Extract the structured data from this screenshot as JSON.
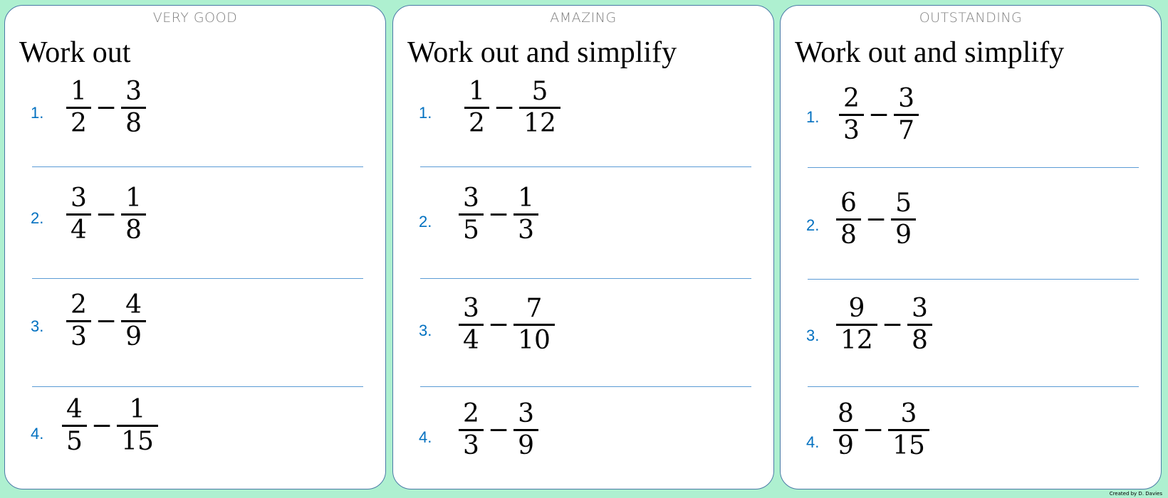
{
  "panels": [
    {
      "grade": "VERY GOOD",
      "instruction": "Work out",
      "questions": [
        {
          "n": "1.",
          "a": [
            "1",
            "2"
          ],
          "b": [
            "3",
            "8"
          ]
        },
        {
          "n": "2.",
          "a": [
            "3",
            "4"
          ],
          "b": [
            "1",
            "8"
          ]
        },
        {
          "n": "3.",
          "a": [
            "2",
            "3"
          ],
          "b": [
            "4",
            "9"
          ]
        },
        {
          "n": "4.",
          "a": [
            "4",
            "5"
          ],
          "b": [
            "1",
            "15"
          ]
        }
      ]
    },
    {
      "grade": "AMAZING",
      "instruction": "Work out and simplify",
      "questions": [
        {
          "n": "1.",
          "a": [
            "1",
            "2"
          ],
          "b": [
            "5",
            "12"
          ]
        },
        {
          "n": "2.",
          "a": [
            "3",
            "5"
          ],
          "b": [
            "1",
            "3"
          ]
        },
        {
          "n": "3.",
          "a": [
            "3",
            "4"
          ],
          "b": [
            "7",
            "10"
          ]
        },
        {
          "n": "4.",
          "a": [
            "2",
            "3"
          ],
          "b": [
            "3",
            "9"
          ]
        }
      ]
    },
    {
      "grade": "OUTSTANDING",
      "instruction": "Work out and simplify",
      "questions": [
        {
          "n": "1.",
          "a": [
            "2",
            "3"
          ],
          "b": [
            "3",
            "7"
          ]
        },
        {
          "n": "2.",
          "a": [
            "6",
            "8"
          ],
          "b": [
            "5",
            "9"
          ]
        },
        {
          "n": "3.",
          "a": [
            "9",
            "12"
          ],
          "b": [
            "3",
            "8"
          ]
        },
        {
          "n": "4.",
          "a": [
            "8",
            "9"
          ],
          "b": [
            "3",
            "15"
          ]
        }
      ]
    }
  ],
  "operator": "−",
  "credit": "Created by D. Davies",
  "colors": {
    "background": "#aef0d0",
    "number": "#0070c0",
    "rule": "#5b9bd5",
    "border": "#4a7aa6"
  }
}
